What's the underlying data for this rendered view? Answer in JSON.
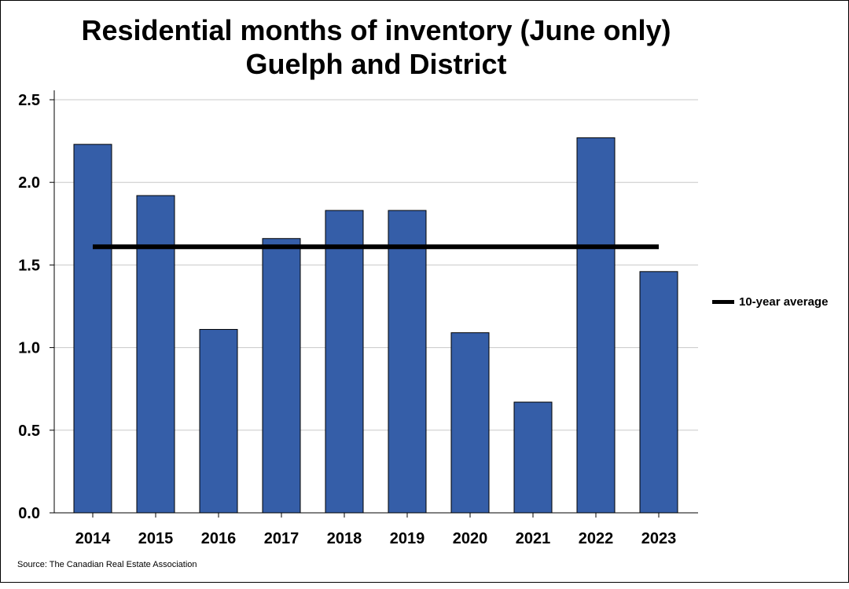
{
  "chart_data": {
    "type": "bar",
    "title_line1": "Residential months of inventory (June only)",
    "title_line2": "Guelph and District",
    "categories": [
      "2014",
      "2015",
      "2016",
      "2017",
      "2018",
      "2019",
      "2020",
      "2021",
      "2022",
      "2023"
    ],
    "values": [
      2.23,
      1.92,
      1.11,
      1.66,
      1.83,
      1.83,
      1.09,
      0.67,
      2.27,
      1.46
    ],
    "average": 1.61,
    "legend_label": "10-year average",
    "ylim": [
      0,
      2.5
    ],
    "yticks": [
      "0.0",
      "0.5",
      "1.0",
      "1.5",
      "2.0",
      "2.5"
    ],
    "bar_color": "#355ea8",
    "average_color": "#000000",
    "grid": true,
    "legend_position": "right"
  },
  "source": "Source: The Canadian Real Estate Association"
}
